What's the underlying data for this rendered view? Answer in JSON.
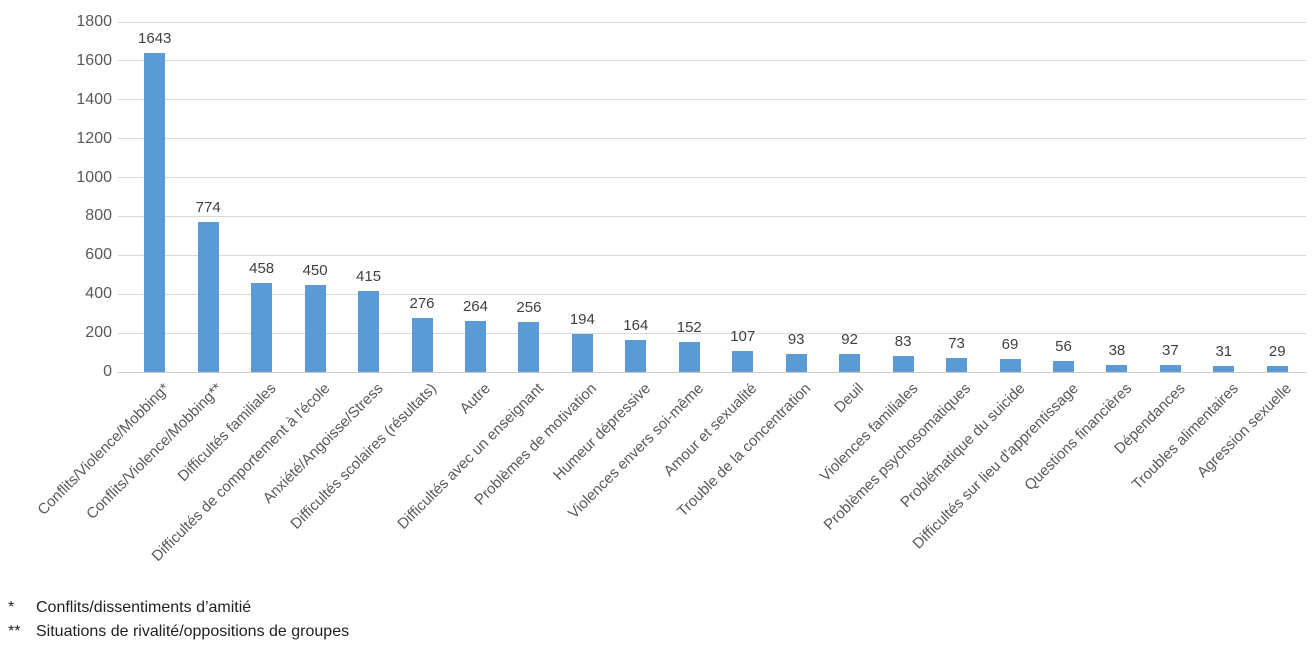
{
  "chart_data": {
    "type": "bar",
    "title": "",
    "xlabel": "",
    "ylabel": "",
    "categories": [
      "Conflits/Violence/Mobbing*",
      "Conflits/Violence/Mobbing**",
      "Difficultés familiales",
      "Difficultés de comportement à l'école",
      "Anxiété/Angoisse/Stress",
      "Difficultés scolaires (résultats)",
      "Autre",
      "Difficultés avec un enseignant",
      "Problèmes de motivation",
      "Humeur dépressive",
      "Violences envers soi-même",
      "Amour et sexualité",
      "Trouble de la concentration",
      "Deuil",
      "Violences familiales",
      "Problèmes psychosomatiques",
      "Problématique du suicide",
      "Difficultés sur lieu d'apprentissage",
      "Questions financières",
      "Dépendances",
      "Troubles alimentaires",
      "Agression sexuelle"
    ],
    "values": [
      1643,
      774,
      458,
      450,
      415,
      276,
      264,
      256,
      194,
      164,
      152,
      107,
      93,
      92,
      83,
      73,
      69,
      56,
      38,
      37,
      31,
      29
    ],
    "ylim": [
      0,
      1800
    ],
    "yticks": [
      0,
      200,
      400,
      600,
      800,
      1000,
      1200,
      1400,
      1600,
      1800
    ],
    "grid": true,
    "legend_position": "none",
    "bar_color": "#5b9bd5",
    "gridline_color": "#d9d9d9",
    "axis_label_color": "#595959",
    "value_label_color": "#404040"
  },
  "footnotes": [
    {
      "marker": "*",
      "text": "Conflits/dissentiments d’amitié"
    },
    {
      "marker": "**",
      "text": "Situations de rivalité/oppositions de groupes"
    }
  ]
}
